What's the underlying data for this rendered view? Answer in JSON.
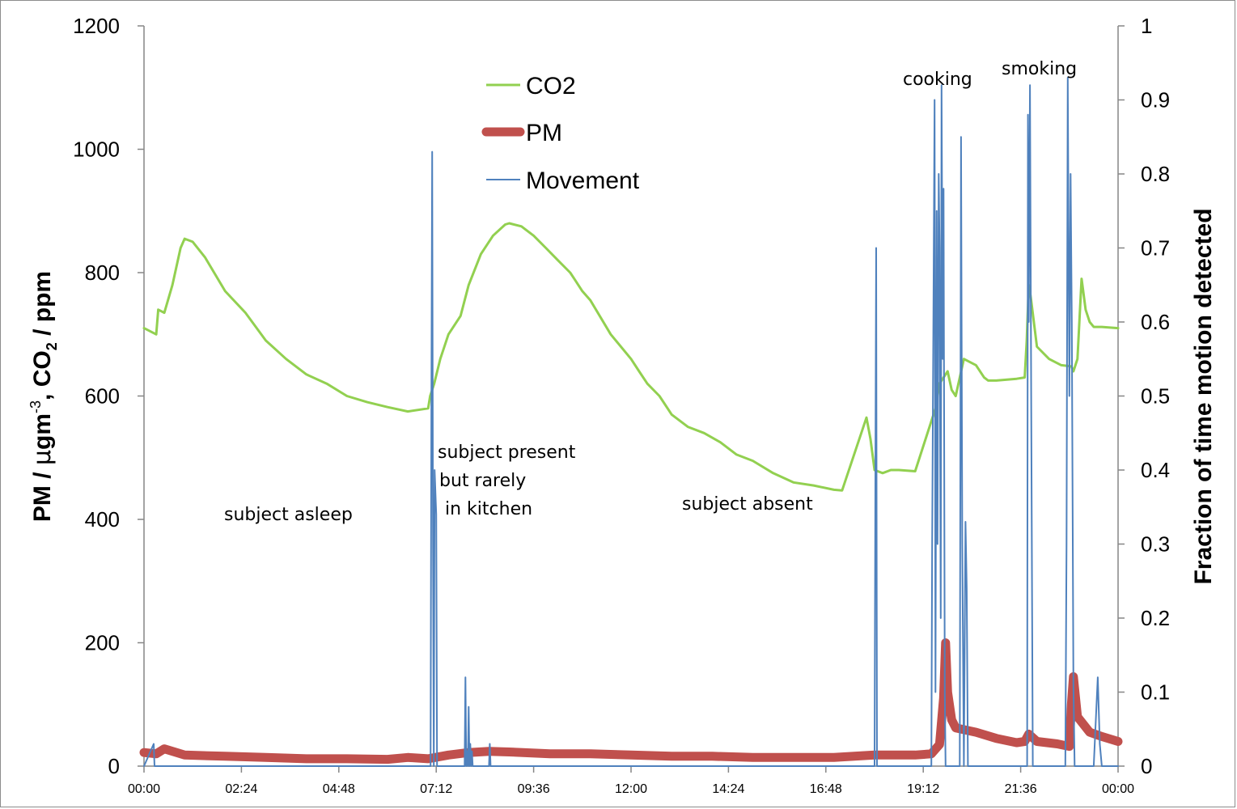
{
  "chart_data": {
    "type": "line",
    "xlabel": "",
    "ylabel": {
      "p1": "PM / ",
      "mu": "μ",
      "p2": "gm",
      "sup": "-3",
      "p3": ", CO",
      "sub": "2",
      "p4": " / ppm"
    },
    "y2label": "Fraction of time motion detected",
    "ylim": [
      0,
      1200
    ],
    "y2lim": [
      0,
      1
    ],
    "xlim_hours": [
      0,
      24
    ],
    "yticks": [
      "0",
      "200",
      "400",
      "600",
      "800",
      "1000",
      "1200"
    ],
    "y2ticks": [
      "0",
      "0.1",
      "0.2",
      "0.3",
      "0.4",
      "0.5",
      "0.6",
      "0.7",
      "0.8",
      "0.9",
      "1"
    ],
    "xticks": [
      "00:00",
      "02:24",
      "04:48",
      "07:12",
      "09:36",
      "12:00",
      "14:24",
      "16:48",
      "19:12",
      "21:36",
      "00:00"
    ],
    "grid": false,
    "legend_placement": "top-center",
    "series": [
      {
        "name": "CO2",
        "axis": "left",
        "color": "#92d050",
        "x": [
          0,
          0.3,
          0.35,
          0.5,
          0.7,
          0.9,
          1.0,
          1.2,
          1.5,
          2.0,
          2.5,
          3.0,
          3.5,
          4.0,
          4.5,
          5.0,
          5.5,
          6.0,
          6.5,
          7.0,
          7.05,
          7.15,
          7.3,
          7.5,
          7.8,
          8.0,
          8.3,
          8.6,
          8.9,
          9.0,
          9.3,
          9.6,
          9.9,
          10.2,
          10.5,
          10.6,
          10.8,
          11.0,
          11.5,
          12.0,
          12.2,
          12.4,
          12.7,
          13.0,
          13.4,
          13.8,
          14.2,
          14.6,
          15.0,
          15.5,
          16.0,
          16.5,
          17.0,
          17.2,
          17.8,
          17.9,
          18.0,
          18.2,
          18.4,
          18.6,
          19.0,
          19.5,
          19.6,
          19.8,
          19.9,
          20.0,
          20.2,
          20.5,
          20.7,
          20.8,
          21.0,
          21.5,
          21.7,
          21.75,
          21.8,
          21.85,
          22.0,
          22.3,
          22.6,
          22.85,
          22.9,
          23.0,
          23.1,
          23.2,
          23.3,
          23.4,
          23.6,
          24.0
        ],
        "values": [
          710,
          700,
          740,
          735,
          780,
          840,
          855,
          850,
          825,
          770,
          735,
          690,
          660,
          635,
          620,
          600,
          590,
          582,
          575,
          580,
          600,
          620,
          660,
          700,
          730,
          780,
          830,
          860,
          878,
          880,
          875,
          860,
          840,
          820,
          800,
          790,
          770,
          755,
          700,
          660,
          640,
          620,
          600,
          570,
          550,
          540,
          525,
          505,
          495,
          475,
          460,
          455,
          448,
          447,
          565,
          530,
          480,
          475,
          480,
          480,
          478,
          580,
          620,
          640,
          610,
          600,
          660,
          650,
          630,
          625,
          625,
          628,
          630,
          690,
          780,
          760,
          680,
          660,
          650,
          648,
          640,
          660,
          790,
          740,
          720,
          712,
          712,
          710
        ]
      },
      {
        "name": "PM",
        "axis": "left",
        "color": "#c0504d",
        "x": [
          0,
          0.3,
          0.5,
          1.0,
          2.0,
          3.0,
          4.0,
          5.0,
          6.0,
          6.5,
          7.0,
          7.5,
          8.0,
          8.5,
          9.0,
          10.0,
          11.0,
          12.0,
          13.0,
          14.0,
          15.0,
          16.0,
          17.0,
          17.5,
          18.0,
          19.0,
          19.4,
          19.6,
          19.7,
          19.75,
          19.8,
          19.9,
          20.0,
          20.5,
          21.0,
          21.5,
          21.7,
          21.8,
          22.0,
          22.5,
          22.8,
          22.85,
          22.9,
          23.0,
          23.3,
          23.6,
          24.0
        ],
        "values": [
          22,
          20,
          28,
          18,
          16,
          14,
          12,
          12,
          11,
          14,
          12,
          18,
          22,
          24,
          23,
          20,
          20,
          18,
          16,
          16,
          14,
          14,
          14,
          16,
          18,
          18,
          20,
          35,
          110,
          200,
          120,
          75,
          62,
          55,
          45,
          38,
          40,
          52,
          40,
          36,
          32,
          100,
          145,
          80,
          55,
          48,
          40
        ]
      },
      {
        "name": "Movement",
        "axis": "right",
        "color": "#4f81bd",
        "x": [
          0,
          0.24,
          0.26,
          0.28,
          6.6,
          7.06,
          7.08,
          7.1,
          7.12,
          7.14,
          7.16,
          7.2,
          7.22,
          7.24,
          7.9,
          7.92,
          7.94,
          7.96,
          7.98,
          8.0,
          8.02,
          8.04,
          8.06,
          8.08,
          8.1,
          8.12,
          8.5,
          8.52,
          8.54,
          18.0,
          18.02,
          18.04,
          18.06,
          18.08,
          19.4,
          19.42,
          19.48,
          19.5,
          19.53,
          19.55,
          19.58,
          19.6,
          19.63,
          19.65,
          19.68,
          19.7,
          19.73,
          19.75,
          19.78,
          19.8,
          19.83,
          19.86,
          19.9,
          20.1,
          20.13,
          20.16,
          20.2,
          20.24,
          20.27,
          20.3,
          20.35,
          21.76,
          21.78,
          21.8,
          21.83,
          21.86,
          21.9,
          22.7,
          22.73,
          22.76,
          22.8,
          22.83,
          22.86,
          22.9,
          22.93,
          22.96,
          23.0,
          23.05,
          23.1,
          23.4,
          23.5,
          23.55,
          23.6,
          24.0
        ],
        "values": [
          0,
          0.03,
          0,
          0,
          0,
          0,
          0.48,
          0.83,
          0.3,
          0,
          0.4,
          0.34,
          0,
          0,
          0,
          0.12,
          0,
          0.02,
          0,
          0.08,
          0,
          0.03,
          0,
          0.02,
          0,
          0,
          0,
          0.03,
          0,
          0,
          0.38,
          0.7,
          0,
          0,
          0,
          0.3,
          0.9,
          0.1,
          0.75,
          0.3,
          0.8,
          0.7,
          0.2,
          0.92,
          0.55,
          0.78,
          0.1,
          0,
          0,
          0,
          0,
          0,
          0,
          0,
          0.85,
          0.3,
          0,
          0.33,
          0.24,
          0,
          0,
          0,
          0.88,
          0.6,
          0.92,
          0.5,
          0,
          0,
          0.3,
          0.93,
          0.5,
          0.8,
          0.6,
          0.11,
          0,
          0,
          0,
          0,
          0,
          0,
          0.12,
          0.03,
          0,
          0
        ]
      }
    ]
  },
  "annotations": {
    "asleep": "subject asleep",
    "present_1": "subject present",
    "present_2": "but rarely",
    "present_3": "in kitchen",
    "absent": "subject absent",
    "cooking": "cooking",
    "smoking": "smoking"
  }
}
